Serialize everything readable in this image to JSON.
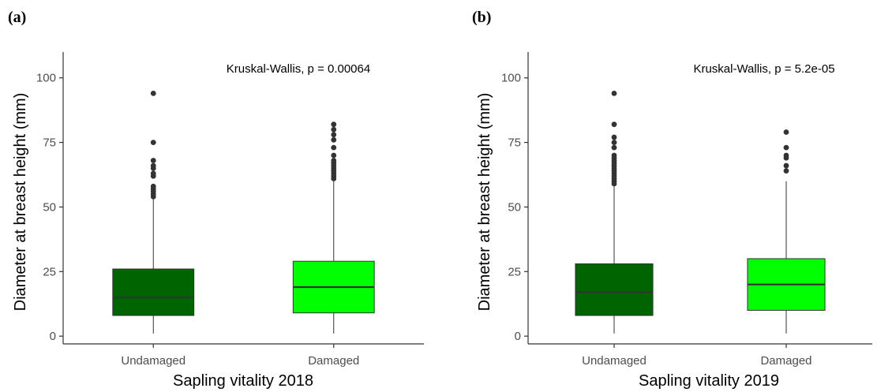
{
  "chart_data": [
    {
      "type": "box",
      "panel_label_open": "(",
      "panel_label": "a",
      "panel_label_close": ")",
      "annotation": "Kruskal-Wallis, p = 0.00064",
      "xlabel": "Sapling vitality 2018",
      "ylabel": "Diameter at breast height (mm)",
      "ylim": [
        -3,
        110
      ],
      "yticks": [
        0,
        25,
        50,
        75,
        100
      ],
      "categories": [
        "Undamaged",
        "Damaged"
      ],
      "boxes": [
        {
          "category": "Undamaged",
          "color": "#006400",
          "min": 1,
          "q1": 8,
          "median": 15,
          "q3": 26,
          "max": 53,
          "outliers": [
            54,
            55,
            56,
            57,
            58,
            62,
            63,
            65,
            66,
            68,
            75,
            94
          ]
        },
        {
          "category": "Damaged",
          "color": "#00ff00",
          "min": 1,
          "q1": 9,
          "median": 19,
          "q3": 29,
          "max": 60,
          "outliers": [
            61,
            62,
            63,
            64,
            65,
            66,
            67,
            68,
            70,
            73,
            76,
            78,
            80,
            82
          ]
        }
      ]
    },
    {
      "type": "box",
      "panel_label_open": "(",
      "panel_label": "b",
      "panel_label_close": ")",
      "annotation": "Kruskal-Wallis, p = 5.2e-05",
      "xlabel": "Sapling vitality 2019",
      "ylabel": "Diameter at breast height (mm)",
      "ylim": [
        -3,
        110
      ],
      "yticks": [
        0,
        25,
        50,
        75,
        100
      ],
      "categories": [
        "Undamaged",
        "Damaged"
      ],
      "boxes": [
        {
          "category": "Undamaged",
          "color": "#006400",
          "min": 1,
          "q1": 8,
          "median": 17,
          "q3": 28,
          "max": 58,
          "outliers": [
            59,
            60,
            61,
            62,
            63,
            64,
            65,
            66,
            67,
            68,
            69,
            70,
            73,
            75,
            77,
            82,
            94
          ]
        },
        {
          "category": "Damaged",
          "color": "#00ff00",
          "min": 1,
          "q1": 10,
          "median": 20,
          "q3": 30,
          "max": 60,
          "outliers": [
            64,
            66,
            69,
            70,
            73,
            79
          ]
        }
      ]
    }
  ]
}
